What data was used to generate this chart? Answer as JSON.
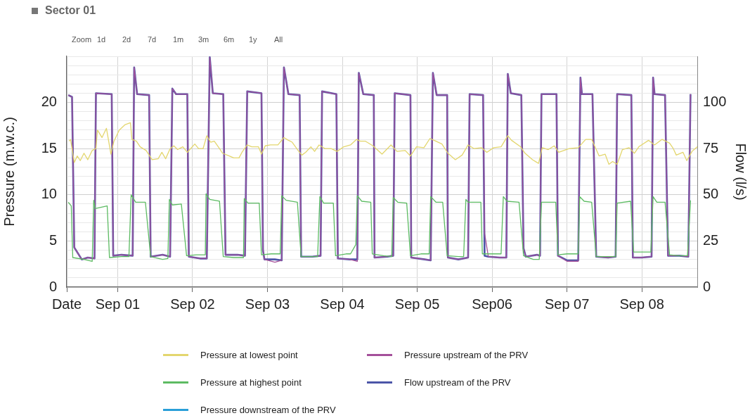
{
  "chart_data": {
    "type": "line",
    "title": "Sector 01",
    "annotations": [
      "Zoom",
      "1d",
      "2d",
      "7d",
      "1m",
      "3m",
      "6m",
      "1y",
      "All"
    ],
    "ylabel": "Pressure (m.w.c.)",
    "y2label": "Flow (l/s)",
    "xlim": [
      "--08-31T07:41",
      "--09-08T17:46"
    ],
    "xticks": [
      {
        "value": "--08-31T07:41",
        "label": "Date"
      },
      {
        "value": "--09-01",
        "label": "Sep 01"
      },
      {
        "value": "--09-02",
        "label": "Sep 02"
      },
      {
        "value": "--09-03",
        "label": "Sep 03"
      },
      {
        "value": "--09-04",
        "label": "Sep 04"
      },
      {
        "value": "--09-05",
        "label": "Sep 05"
      },
      {
        "value": "--09-06",
        "label": "Sep06"
      },
      {
        "value": "--09-07",
        "label": "Sep 07"
      },
      {
        "value": "--09-08",
        "label": "Sep 08"
      }
    ],
    "ylim": [
      0,
      25
    ],
    "yticks": [
      0,
      {
        "value": 1,
        "label": null
      },
      {
        "value": 2,
        "label": null
      },
      {
        "value": 3,
        "label": null
      },
      {
        "value": 4,
        "label": null
      },
      5,
      {
        "value": 6,
        "label": null
      },
      {
        "value": 7,
        "label": null
      },
      {
        "value": 8,
        "label": null
      },
      {
        "value": 9,
        "label": null
      },
      10,
      {
        "value": 11,
        "label": null
      },
      {
        "value": 12,
        "label": null
      },
      {
        "value": 13,
        "label": null
      },
      {
        "value": 14,
        "label": null
      },
      15,
      {
        "value": 16,
        "label": null
      },
      {
        "value": 17,
        "label": null
      },
      {
        "value": 18,
        "label": null
      },
      {
        "value": 19,
        "label": null
      },
      20,
      {
        "value": 21,
        "label": null
      },
      {
        "value": 22,
        "label": null
      },
      {
        "value": 23,
        "label": null
      },
      {
        "value": 24,
        "label": null
      },
      {
        "value": 25,
        "label": null
      }
    ],
    "y2lim": [
      0,
      125
    ],
    "y2ticks": [
      0,
      25,
      50,
      75,
      100
    ],
    "grid": true,
    "legend": "bottom",
    "marker": "none",
    "line_style": "solid",
    "series": [
      {
        "name": "Pressure at lowest point",
        "color": "#e3d66e",
        "x": [
          "--08-31T08:24",
          "--08-31T08:53",
          "--08-31T10:05",
          "--08-31T11:02",
          "--08-31T12:00",
          "--08-31T13:12",
          "--08-31T14:24",
          "--08-31T15:50",
          "--08-31T17:02",
          "--08-31T17:31",
          "--08-31T18:58",
          "--08-31T20:24",
          "--08-31T21:50",
          "--08-31T22:48",
          "--09-01T00:29",
          "--09-01T02:24",
          "--09-01T04:05",
          "--09-01T04:34",
          "--09-01T06:00",
          "--09-01T07:12",
          "--09-01T09:07",
          "--09-01T11:02",
          "--09-01T12:58",
          "--09-01T14:10",
          "--09-01T15:22",
          "--09-01T16:48",
          "--09-01T18:00",
          "--09-01T19:12",
          "--09-01T20:53",
          "--09-01T22:19",
          "--09-02T00:43",
          "--09-02T01:55",
          "--09-02T03:22",
          "--09-02T04:34",
          "--09-02T05:46",
          "--09-02T06:58",
          "--09-02T08:38",
          "--09-02T09:36",
          "--09-02T11:46",
          "--09-02T13:12",
          "--09-02T14:53",
          "--09-02T15:50",
          "--09-02T17:31",
          "--09-02T18:58",
          "--09-02T21:07",
          "--09-02T22:05",
          "--09-02T23:17",
          "--09-03T00:58",
          "--09-03T03:22",
          "--09-03T05:17",
          "--09-03T06:43",
          "--09-03T07:55",
          "--09-03T09:50",
          "--09-03T11:02",
          "--09-03T12:14",
          "--09-03T13:55",
          "--09-03T15:07",
          "--09-03T16:34",
          "--09-03T18:29",
          "--09-03T20:24",
          "--09-03T22:19",
          "--09-04T00:29",
          "--09-04T02:38",
          "--09-04T04:34",
          "--09-04T05:46",
          "--09-04T07:26",
          "--09-04T09:50",
          "--09-04T12:43",
          "--09-04T15:36",
          "--09-04T17:31",
          "--09-04T20:10",
          "--09-04T21:50",
          "--09-04T23:46",
          "--09-05T02:10",
          "--09-05T04:05",
          "--09-05T06:00",
          "--09-05T07:55",
          "--09-05T09:50",
          "--09-05T12:14",
          "--09-05T14:24",
          "--09-05T16:19",
          "--09-05T18:14",
          "--09-05T20:38",
          "--09-05T22:19",
          "--09-06T00:29",
          "--09-06T02:53",
          "--09-06T05:02",
          "--09-06T06:14",
          "--09-06T09:07",
          "--09-06T10:34",
          "--09-06T12:58",
          "--09-06T14:53",
          "--09-06T16:05",
          "--09-06T18:00",
          "--09-06T19:55",
          "--09-06T21:22",
          "--09-07T00:43",
          "--09-07T03:36",
          "--09-07T06:00",
          "--09-07T07:55",
          "--09-07T10:19",
          "--09-07T12:14",
          "--09-07T13:26",
          "--09-07T14:38",
          "--09-07T16:05",
          "--09-07T17:46",
          "--09-07T19:55",
          "--09-07T21:36",
          "--09-07T23:02",
          "--09-08T02:10",
          "--09-08T04:05",
          "--09-08T06:29",
          "--09-08T08:53",
          "--09-08T10:05",
          "--09-08T11:02",
          "--09-08T13:12",
          "--09-08T14:24",
          "--09-08T16:05",
          "--09-08T17:46"
        ],
        "values": [
          15.8,
          16.0,
          13.5,
          14.2,
          13.7,
          14.5,
          13.8,
          14.8,
          15.0,
          17.0,
          16.2,
          17.2,
          14.4,
          15.8,
          17.0,
          17.6,
          17.8,
          16.0,
          15.8,
          15.2,
          14.8,
          13.8,
          13.9,
          14.6,
          13.9,
          15.0,
          15.3,
          14.9,
          15.2,
          14.6,
          15.5,
          15.0,
          15.0,
          16.4,
          15.7,
          15.8,
          15.0,
          14.5,
          14.2,
          14.0,
          14.0,
          14.6,
          15.4,
          15.2,
          15.2,
          14.4,
          15.3,
          15.4,
          15.4,
          16.2,
          15.9,
          15.7,
          14.8,
          14.3,
          14.6,
          15.2,
          14.7,
          15.4,
          15.0,
          15.0,
          14.7,
          15.2,
          15.4,
          16.0,
          15.8,
          15.8,
          15.3,
          14.4,
          15.4,
          14.7,
          14.8,
          14.2,
          15.2,
          15.1,
          16.1,
          15.8,
          15.5,
          14.5,
          13.8,
          14.3,
          15.4,
          15.0,
          15.1,
          14.6,
          15.1,
          15.2,
          16.4,
          15.9,
          15.2,
          14.5,
          13.8,
          13.4,
          15.1,
          14.9,
          15.3,
          14.6,
          15.0,
          15.1,
          16.0,
          16.0,
          14.2,
          14.4,
          13.3,
          13.6,
          13.3,
          14.9,
          15.1,
          14.5,
          15.2,
          15.9,
          15.4,
          16.0,
          15.6,
          15.0,
          14.3,
          14.6,
          13.7,
          14.7,
          15.2
        ]
      },
      {
        "name": "Pressure at highest point",
        "color": "#5dbb63",
        "x": [
          "--08-31T08:10",
          "--08-31T09:07",
          "--08-31T09:36",
          "--08-31T13:12",
          "--08-31T15:50",
          "--08-31T16:19",
          "--08-31T16:48",
          "--08-31T20:38",
          "--08-31T21:22",
          "--09-01T01:12",
          "--09-01T03:36",
          "--09-01T04:19",
          "--09-01T05:46",
          "--09-01T08:53",
          "--09-01T10:34",
          "--09-01T14:24",
          "--09-01T16:05",
          "--09-01T16:34",
          "--09-01T17:31",
          "--09-01T20:24",
          "--09-01T22:05",
          "--09-02T01:12",
          "--09-02T04:05",
          "--09-02T04:19",
          "--09-02T05:31",
          "--09-02T08:38",
          "--09-02T09:50",
          "--09-02T13:12",
          "--09-02T16:19",
          "--09-02T16:34",
          "--09-02T17:46",
          "--09-02T21:22",
          "--09-02T22:05",
          "--09-03T01:12",
          "--09-03T04:05",
          "--09-03T04:34",
          "--09-03T06:00",
          "--09-03T09:36",
          "--09-03T10:48",
          "--09-03T14:24",
          "--09-03T16:05",
          "--09-03T16:48",
          "--09-03T18:00",
          "--09-03T21:07",
          "--09-03T21:50",
          "--09-04T01:12",
          "--09-04T02:38",
          "--09-04T04:19",
          "--09-04T04:48",
          "--09-04T06:14",
          "--09-04T09:07",
          "--09-04T09:36",
          "--09-04T13:12",
          "--09-04T15:50",
          "--09-04T16:19",
          "--09-04T17:46",
          "--09-04T20:38",
          "--09-04T21:50",
          "--09-05T01:12",
          "--09-05T03:50",
          "--09-05T04:19",
          "--09-05T06:00",
          "--09-05T08:10",
          "--09-05T09:36",
          "--09-05T13:12",
          "--09-05T14:53",
          "--09-05T15:36",
          "--09-05T16:19",
          "--09-05T20:24",
          "--09-05T20:53",
          "--09-06T00:00",
          "--09-06T02:53",
          "--09-06T03:36",
          "--09-06T04:48",
          "--09-06T08:38",
          "--09-06T10:05",
          "--09-06T13:12",
          "--09-06T15:07",
          "--09-06T15:50",
          "--09-06T20:24",
          "--09-06T21:07",
          "--09-07T00:00",
          "--09-07T03:36",
          "--09-07T04:05",
          "--09-07T05:31",
          "--09-07T07:55",
          "--09-07T09:22",
          "--09-07T13:12",
          "--09-07T15:36",
          "--09-07T16:05",
          "--09-07T20:24",
          "--09-07T21:22",
          "--09-08T00:00",
          "--09-08T02:53",
          "--09-08T03:36",
          "--09-08T04:48",
          "--09-08T07:26",
          "--09-08T08:53",
          "--09-08T12:00",
          "--09-08T14:38",
          "--09-08T15:36"
        ],
        "values": [
          9.2,
          8.8,
          3.2,
          3.0,
          2.8,
          9.4,
          8.5,
          8.8,
          3.2,
          3.3,
          3.3,
          10.0,
          9.2,
          9.2,
          3.3,
          3.0,
          3.1,
          9.5,
          8.9,
          9.0,
          3.4,
          3.5,
          3.5,
          10.1,
          9.5,
          9.3,
          3.3,
          3.2,
          3.2,
          9.6,
          9.1,
          9.1,
          3.5,
          3.6,
          3.6,
          9.9,
          9.4,
          9.2,
          3.3,
          3.3,
          3.3,
          9.8,
          9.1,
          9.1,
          3.4,
          3.6,
          3.6,
          4.6,
          9.9,
          9.3,
          9.2,
          3.6,
          3.4,
          3.3,
          9.7,
          9.2,
          9.1,
          3.4,
          3.6,
          3.6,
          9.8,
          9.2,
          9.2,
          3.4,
          3.3,
          3.3,
          9.5,
          9.2,
          9.2,
          3.6,
          3.6,
          3.6,
          9.8,
          9.3,
          9.2,
          3.4,
          3.0,
          3.0,
          9.2,
          9.2,
          3.5,
          3.6,
          3.6,
          9.8,
          9.3,
          9.2,
          3.3,
          3.3,
          3.3,
          9.1,
          9.3,
          3.8,
          3.8,
          3.8,
          9.8,
          9.2,
          9.2,
          3.5,
          3.4,
          3.4,
          9.4
        ]
      },
      {
        "name": "Pressure downstream of the PRV",
        "color": "#2a9fd8"
      },
      {
        "name": "Pressure upstream of the PRV",
        "color": "#a4509a",
        "x": [
          "--08-31T08:10",
          "--08-31T09:22",
          "--08-31T10:05",
          "--08-31T12:29",
          "--08-31T14:24",
          "--08-31T16:34",
          "--08-31T17:02",
          "--08-31T22:05",
          "--08-31T22:34",
          "--09-01T01:12",
          "--09-01T04:48",
          "--09-01T05:17",
          "--09-01T06:14",
          "--09-01T10:05",
          "--09-01T10:34",
          "--09-01T14:24",
          "--09-01T16:48",
          "--09-01T17:31",
          "--09-01T18:43",
          "--09-01T22:19",
          "--09-01T22:48",
          "--09-02T02:24",
          "--09-02T04:34",
          "--09-02T05:31",
          "--09-02T06:29",
          "--09-02T09:50",
          "--09-02T10:34",
          "--09-02T14:24",
          "--09-02T16:48",
          "--09-02T17:31",
          "--09-02T22:05",
          "--09-02T22:34",
          "--09-02T23:02",
          "--09-03T02:24",
          "--09-03T04:34",
          "--09-03T05:17",
          "--09-03T06:43",
          "--09-03T10:19",
          "--09-03T10:48",
          "--09-03T14:24",
          "--09-03T17:02",
          "--09-03T17:31",
          "--09-03T22:05",
          "--09-03T22:34",
          "--09-04T02:24",
          "--09-04T04:48",
          "--09-04T05:17",
          "--09-04T06:43",
          "--09-04T10:05",
          "--09-04T10:19",
          "--09-04T14:24",
          "--09-04T16:19",
          "--09-04T16:48",
          "--09-04T21:50",
          "--09-04T22:05",
          "--09-05T02:24",
          "--09-05T04:19",
          "--09-05T05:02",
          "--09-05T06:14",
          "--09-05T09:36",
          "--09-05T09:50",
          "--09-05T13:12",
          "--09-05T16:19",
          "--09-05T16:48",
          "--09-05T21:07",
          "--09-05T21:36",
          "--09-05T22:48",
          "--09-06T02:24",
          "--09-06T04:34",
          "--09-06T05:02",
          "--09-06T06:00",
          "--09-06T09:22",
          "--09-06T10:05",
          "--09-06T10:48",
          "--09-06T14:24",
          "--09-06T15:22",
          "--09-06T15:50",
          "--09-06T20:38",
          "--09-06T21:07",
          "--09-07T00:00",
          "--09-07T03:36",
          "--09-07T04:19",
          "--09-07T04:48",
          "--09-07T08:10",
          "--09-07T09:22",
          "--09-07T13:12",
          "--09-07T15:36",
          "--09-07T16:05",
          "--09-07T20:38",
          "--09-07T21:07",
          "--09-08T00:00",
          "--09-08T03:07",
          "--09-08T03:36",
          "--09-08T04:05",
          "--09-08T07:26",
          "--09-08T08:24",
          "--09-08T12:00",
          "--09-08T14:53",
          "--09-08T15:36"
        ],
        "values": [
          20.8,
          20.6,
          4.3,
          3.0,
          3.2,
          3.1,
          21.0,
          20.9,
          3.4,
          3.5,
          3.4,
          23.8,
          20.9,
          20.8,
          3.3,
          3.5,
          3.3,
          21.5,
          20.9,
          20.9,
          3.3,
          3.1,
          3.1,
          24.9,
          21.0,
          20.9,
          3.5,
          3.5,
          3.4,
          21.2,
          21.0,
          4.0,
          3.0,
          2.7,
          2.9,
          23.8,
          20.9,
          20.8,
          3.3,
          3.3,
          3.4,
          21.2,
          20.9,
          3.1,
          3.0,
          2.8,
          23.2,
          20.9,
          20.8,
          3.2,
          3.3,
          3.4,
          21.0,
          20.8,
          3.2,
          3.0,
          2.9,
          23.2,
          20.8,
          20.8,
          3.2,
          3.0,
          3.2,
          20.9,
          20.8,
          5.8,
          3.3,
          3.2,
          3.2,
          23.1,
          21.0,
          20.8,
          4.2,
          3.3,
          3.5,
          3.4,
          20.9,
          20.9,
          3.4,
          2.8,
          2.8,
          22.7,
          20.9,
          20.9,
          3.3,
          3.2,
          3.3,
          20.9,
          20.8,
          3.2,
          3.2,
          3.3,
          22.7,
          20.9,
          20.8,
          3.4,
          3.4,
          3.3,
          20.9
        ]
      },
      {
        "name": "Flow upstream of the PRV",
        "color": "#4c56a8",
        "axis": "y2",
        "x": [
          "--08-31T08:10",
          "--08-31T09:22",
          "--08-31T10:05",
          "--08-31T12:29",
          "--08-31T14:24",
          "--08-31T16:34",
          "--08-31T17:02",
          "--08-31T22:05",
          "--08-31T22:34",
          "--09-01T01:12",
          "--09-01T04:48",
          "--09-01T05:17",
          "--09-01T06:14",
          "--09-01T10:05",
          "--09-01T10:34",
          "--09-01T14:24",
          "--09-01T16:48",
          "--09-01T17:31",
          "--09-01T18:43",
          "--09-01T22:19",
          "--09-01T22:48",
          "--09-02T02:24",
          "--09-02T04:34",
          "--09-02T05:31",
          "--09-02T06:29",
          "--09-02T09:50",
          "--09-02T10:34",
          "--09-02T14:24",
          "--09-02T16:48",
          "--09-02T17:31",
          "--09-02T22:05",
          "--09-02T22:34",
          "--09-02T23:02",
          "--09-03T02:24",
          "--09-03T04:34",
          "--09-03T05:17",
          "--09-03T06:43",
          "--09-03T10:19",
          "--09-03T10:48",
          "--09-03T14:24",
          "--09-03T17:02",
          "--09-03T17:31",
          "--09-03T22:05",
          "--09-03T22:34",
          "--09-04T02:24",
          "--09-04T04:48",
          "--09-04T05:17",
          "--09-04T06:43",
          "--09-04T10:05",
          "--09-04T10:19",
          "--09-04T14:24",
          "--09-04T16:19",
          "--09-04T16:48",
          "--09-04T21:50",
          "--09-04T22:05",
          "--09-05T02:24",
          "--09-05T04:19",
          "--09-05T05:02",
          "--09-05T06:14",
          "--09-05T09:36",
          "--09-05T09:50",
          "--09-05T13:12",
          "--09-05T16:19",
          "--09-05T16:48",
          "--09-05T21:07",
          "--09-05T21:36",
          "--09-05T22:48",
          "--09-06T02:24",
          "--09-06T04:34",
          "--09-06T05:02",
          "--09-06T06:00",
          "--09-06T09:22",
          "--09-06T10:05",
          "--09-06T10:48",
          "--09-06T14:24",
          "--09-06T15:22",
          "--09-06T15:50",
          "--09-06T20:38",
          "--09-06T21:07",
          "--09-07T00:00",
          "--09-07T03:36",
          "--09-07T04:19",
          "--09-07T04:48",
          "--09-07T08:10",
          "--09-07T09:22",
          "--09-07T13:12",
          "--09-07T15:36",
          "--09-07T16:05",
          "--09-07T20:38",
          "--09-07T21:07",
          "--09-08T00:00",
          "--09-08T03:07",
          "--09-08T03:36",
          "--09-08T04:05",
          "--09-08T07:26",
          "--09-08T08:24",
          "--09-08T12:00",
          "--09-08T14:53",
          "--09-08T15:36"
        ],
        "values": [
          104,
          103,
          21.5,
          15,
          16,
          15.5,
          105,
          104.5,
          17,
          17.5,
          17,
          119,
          104.5,
          104,
          16.5,
          17.5,
          16.5,
          107.5,
          104.5,
          104.5,
          16.5,
          15.5,
          15.5,
          124.5,
          105,
          104.5,
          17.5,
          17.5,
          17,
          106,
          105,
          20,
          15,
          15,
          14.5,
          119,
          104.5,
          104,
          16.5,
          16.5,
          17,
          106,
          104.5,
          15.5,
          15,
          15,
          116,
          104.5,
          104,
          16,
          16.5,
          17,
          105,
          104,
          16,
          15,
          14.5,
          116,
          104,
          104,
          16,
          15,
          16,
          104.5,
          104,
          17,
          16.5,
          16,
          16,
          115.5,
          105,
          104,
          21,
          16.5,
          17.5,
          17,
          104.5,
          104.5,
          17,
          14.5,
          14.5,
          113.5,
          104.5,
          104.5,
          16.5,
          16,
          16.5,
          104.5,
          104,
          16,
          16,
          16.5,
          113.5,
          104.5,
          104,
          17,
          17,
          16.5,
          104.5
        ]
      }
    ]
  }
}
